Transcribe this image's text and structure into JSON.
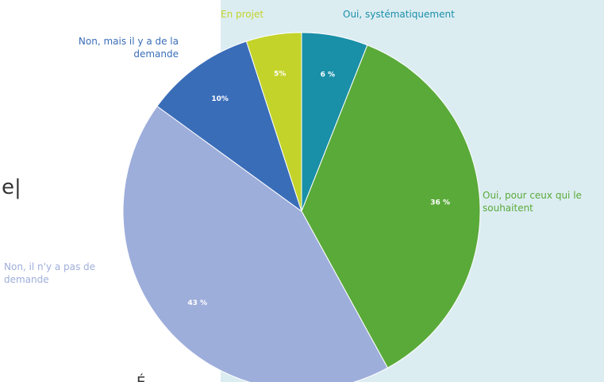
{
  "chart_data": {
    "type": "pie",
    "categories": [
      "Oui, systématiquement",
      "Oui, pour ceux qui le souhaitent",
      "Non, il n'y a pas de demande",
      "Non, mais il y a de la demande",
      "En projet"
    ],
    "values": [
      6,
      36,
      43,
      10,
      5
    ],
    "value_labels": [
      "6 %",
      "36 %",
      "43 %",
      "10%",
      "5%"
    ],
    "colors": [
      "#1a8fa8",
      "#5aaa3a",
      "#9eaedb",
      "#3a6db8",
      "#c3d32a"
    ],
    "fragments": [
      "e|",
      "É"
    ]
  }
}
